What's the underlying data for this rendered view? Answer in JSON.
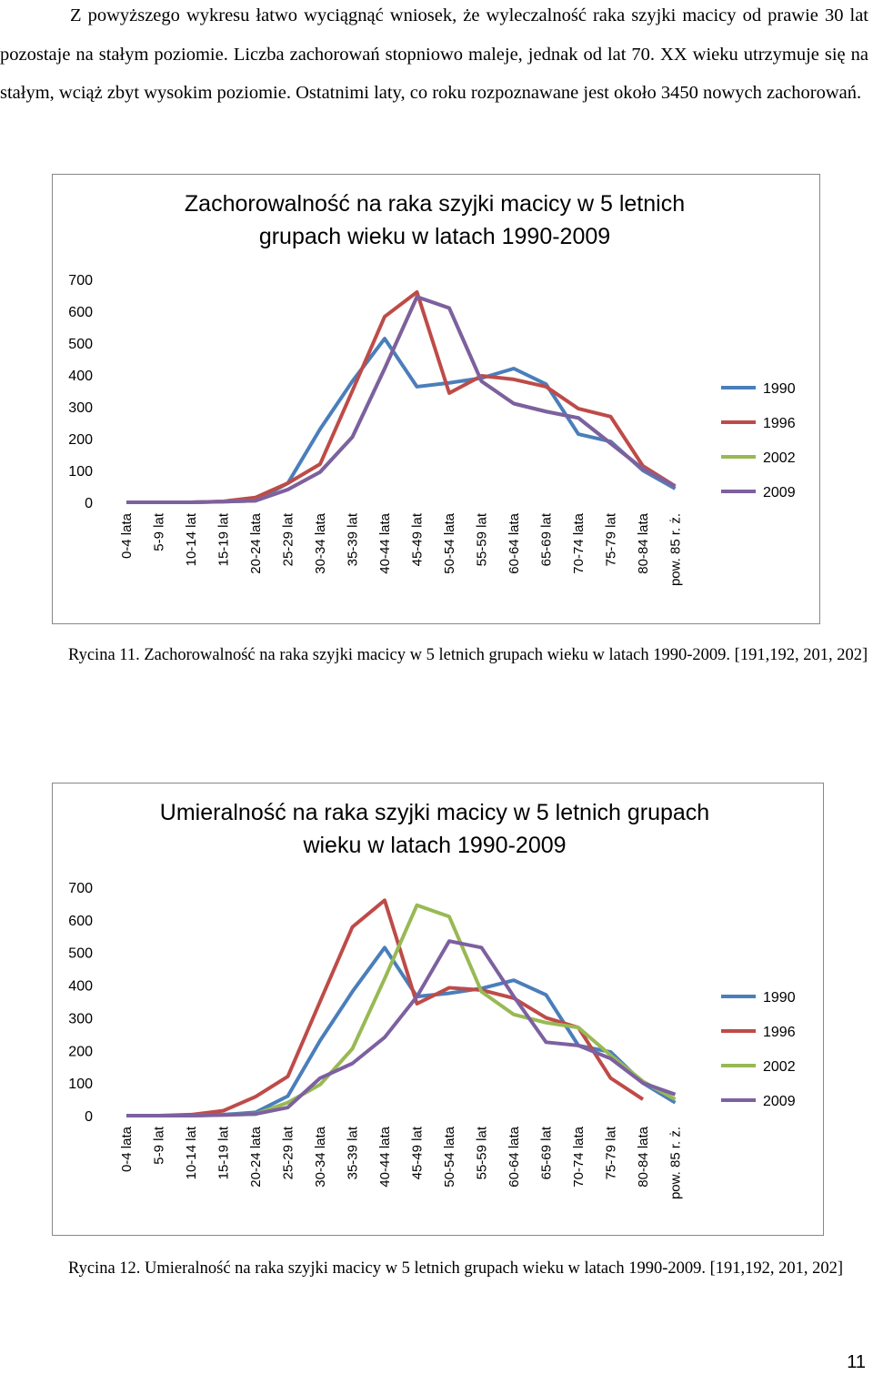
{
  "paragraph": "Z powyższego wykresu łatwo wyciągnąć wniosek, że wyleczalność raka szyjki macicy od prawie 30 lat pozostaje na stałym poziomie. Liczba zachorowań stopniowo maleje, jednak od lat 70. XX wieku utrzymuje się na stałym, wciąż zbyt wysokim poziomie. Ostatnimi laty, co roku rozpoznawane jest około 3450 nowych zachorowań.",
  "chart_data": [
    {
      "type": "line",
      "title": "Zachorowalność na raka szyjki macicy w 5 letnich grupach wieku w latach 1990-2009",
      "categories": [
        "0-4 lata",
        "5-9 lat",
        "10-14 lat",
        "15-19 lat",
        "20-24 lata",
        "25-29 lat",
        "30-34 lata",
        "35-39 lat",
        "40-44 lata",
        "45-49 lat",
        "50-54 lata",
        "55-59 lat",
        "60-64 lata",
        "65-69 lat",
        "70-74 lata",
        "75-79 lat",
        "80-84 lata",
        "pow. 85 r. ż."
      ],
      "series": [
        {
          "name": "1990",
          "color": "#4a7ebb",
          "values": [
            0,
            0,
            0,
            2,
            5,
            60,
            230,
            380,
            514,
            363,
            375,
            390,
            420,
            371,
            214,
            191,
            100,
            43
          ]
        },
        {
          "name": "1996",
          "color": "#be4b48",
          "values": [
            0,
            0,
            0,
            3,
            15,
            60,
            120,
            350,
            583,
            660,
            343,
            397,
            386,
            363,
            294,
            269,
            114,
            51
          ]
        },
        {
          "name": "2002",
          "color": "#98b954",
          "values": [
            0,
            0,
            0,
            2,
            5,
            40,
            95,
            205,
            420,
            645,
            610,
            380,
            310,
            285,
            265,
            185,
            105,
            50
          ]
        },
        {
          "name": "2009",
          "color": "#7d60a0",
          "values": [
            0,
            0,
            0,
            2,
            5,
            40,
            95,
            205,
            420,
            645,
            610,
            380,
            310,
            285,
            265,
            185,
            105,
            50
          ]
        }
      ],
      "ylim": [
        0,
        700
      ],
      "yticks": [
        0,
        100,
        200,
        300,
        400,
        500,
        600,
        700
      ],
      "legend": "right"
    },
    {
      "type": "line",
      "title": "Umieralność na raka szyjki macicy w 5 letnich grupach wieku w latach 1990-2009",
      "categories": [
        "0-4 lata",
        "5-9 lat",
        "10-14 lat",
        "15-19 lat",
        "20-24 lata",
        "25-29 lat",
        "30-34 lata",
        "35-39 lat",
        "40-44 lata",
        "45-49 lat",
        "50-54 lata",
        "55-59 lat",
        "60-64 lata",
        "65-69 lat",
        "70-74 lata",
        "75-79 lat",
        "80-84 lata",
        "pow. 85 r. ż."
      ],
      "series": [
        {
          "name": "1990",
          "color": "#4a7ebb",
          "values": [
            0,
            0,
            0,
            3,
            10,
            60,
            230,
            380,
            515,
            365,
            375,
            390,
            415,
            370,
            215,
            195,
            100,
            40
          ]
        },
        {
          "name": "1996",
          "color": "#be4b48",
          "values": [
            0,
            0,
            3,
            15,
            58,
            120,
            350,
            578,
            660,
            343,
            392,
            385,
            360,
            300,
            270,
            115,
            50,
            null
          ]
        },
        {
          "name": "2002",
          "color": "#98b954",
          "values": [
            0,
            0,
            0,
            2,
            5,
            40,
            95,
            205,
            420,
            645,
            610,
            380,
            310,
            285,
            270,
            185,
            105,
            50
          ]
        },
        {
          "name": "2009",
          "color": "#7d60a0",
          "values": [
            0,
            0,
            0,
            2,
            5,
            25,
            115,
            160,
            240,
            365,
            535,
            515,
            365,
            225,
            215,
            175,
            100,
            65
          ]
        }
      ],
      "ylim": [
        0,
        700
      ],
      "yticks": [
        0,
        100,
        200,
        300,
        400,
        500,
        600,
        700
      ],
      "legend": "right"
    }
  ],
  "captions": [
    "Rycina 11. Zachorowalność na raka szyjki macicy w 5 letnich grupach wieku w latach 1990-2009. [191,192, 201, 202]",
    "Rycina 12. Umieralność na raka szyjki macicy w 5 letnich grupach wieku w latach 1990-2009. [191,192, 201, 202]"
  ],
  "page_number": "11"
}
